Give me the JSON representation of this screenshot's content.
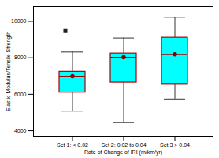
{
  "chart_data": {
    "type": "box",
    "xlabel": "Rate of Change of IRI (m/km/yr)",
    "ylabel": "Elastic Modulus/Tensile Strength",
    "categories": [
      "Set 1: < 0.02",
      "Set 2: 0.02 to 0.04",
      "Set 3 > 0.04"
    ],
    "q1": [
      6094,
      6641,
      6565
    ],
    "median": [
      6989,
      8024,
      8187
    ],
    "q3": [
      7235,
      8239,
      9105
    ],
    "whisker_low": [
      5076,
      4448,
      5743
    ],
    "whisker_high": [
      8318,
      9086,
      10223
    ],
    "mean": [
      6989,
      8024,
      8187
    ],
    "outliers": [
      [
        9471
      ],
      [],
      []
    ],
    "ylim": [
      3700,
      10800
    ],
    "yticks": [
      4000,
      6000,
      8000,
      10000
    ],
    "color": "#00FFFF"
  }
}
